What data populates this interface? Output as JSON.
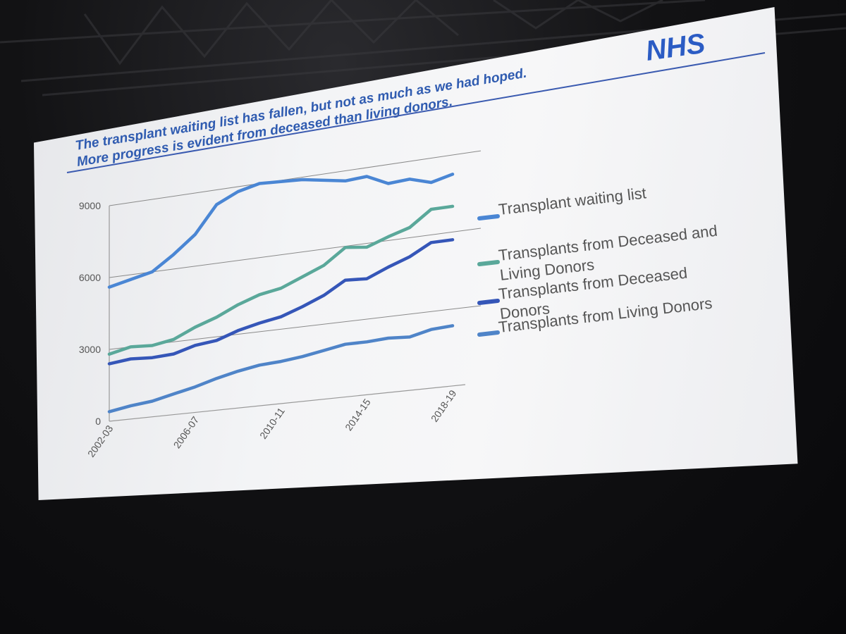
{
  "slide": {
    "title_line1": "The transplant waiting list has fallen, but not as much as we had hoped.",
    "title_line2": "More progress is evident from deceased than living donors.",
    "logo": "NHS"
  },
  "colors": {
    "waiting_list": "#4a86d4",
    "deceased_and_living": "#5aa89a",
    "deceased": "#3556b8",
    "living": "#4f84c8",
    "title": "#2f5bb0"
  },
  "chart_data": {
    "type": "line",
    "title": "",
    "xlabel": "",
    "ylabel": "",
    "x": [
      "2002-03",
      "2003-04",
      "2004-05",
      "2005-06",
      "2006-07",
      "2007-08",
      "2008-09",
      "2009-10",
      "2010-11",
      "2011-12",
      "2012-13",
      "2013-14",
      "2014-15",
      "2015-16",
      "2016-17",
      "2017-18",
      "2018-19"
    ],
    "x_tick_labels": [
      "2002-03",
      "2006-07",
      "2010-11",
      "2014-15",
      "2018-19"
    ],
    "y_ticks": [
      "0",
      "3000",
      "6000",
      "9000"
    ],
    "ylim": [
      0,
      9000
    ],
    "grid": true,
    "legend_position": "right",
    "series": [
      {
        "name": "Transplant waiting list",
        "values": [
          5600,
          5800,
          6000,
          6600,
          7300,
          8400,
          8800,
          9000,
          8950,
          8900,
          8750,
          8600,
          8650,
          8250,
          8300,
          8050,
          8250
        ]
      },
      {
        "name": "Transplants from Deceased and Living Donors",
        "values": [
          2800,
          3000,
          2950,
          3100,
          3500,
          3800,
          4200,
          4500,
          4650,
          5000,
          5350,
          5950,
          5850,
          6150,
          6400,
          7000,
          7000
        ]
      },
      {
        "name": "Transplants from Deceased Donors",
        "values": [
          2400,
          2500,
          2450,
          2500,
          2750,
          2850,
          3150,
          3350,
          3500,
          3800,
          4150,
          4650,
          4600,
          4950,
          5250,
          5700,
          5700
        ]
      },
      {
        "name": "Transplants from Living Donors",
        "values": [
          400,
          550,
          650,
          850,
          1050,
          1300,
          1500,
          1650,
          1700,
          1800,
          1950,
          2100,
          2100,
          2150,
          2100,
          2300,
          2350
        ]
      }
    ]
  }
}
